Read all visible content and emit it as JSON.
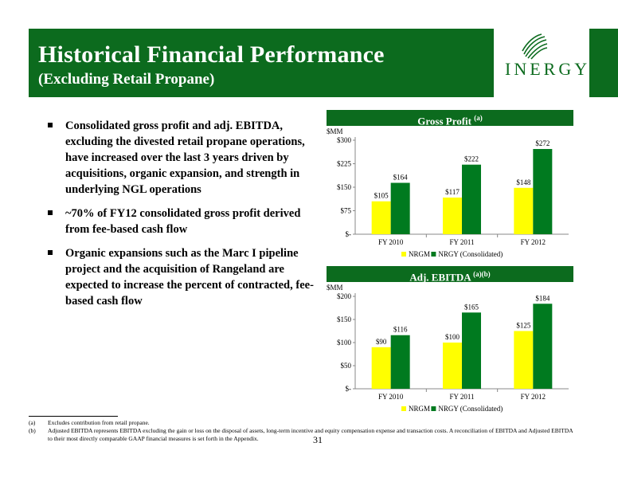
{
  "header": {
    "title": "Historical Financial Performance",
    "subtitle": "(Excluding Retail Propane)",
    "logo_text": "INERGY"
  },
  "bullets": [
    "Consolidated gross profit and adj. EBITDA, excluding the divested retail propane operations, have increased over the last 3 years driven by acquisitions, organic expansion, and strength in underlying NGL operations",
    "~70% of FY12 consolidated gross profit derived from fee-based cash flow",
    "Organic expansions such as the Marc I pipeline project and the acquisition of Rangeland are expected to increase the percent of contracted, fee-based cash flow"
  ],
  "colors": {
    "brand_green": "#0c6b1e",
    "nrgm_yellow": "#ffff00",
    "nrgy_green": "#007a1f"
  },
  "chart_data": [
    {
      "type": "bar",
      "title": "Gross Profit",
      "title_note": "(a)",
      "ylabel": "$MM",
      "categories": [
        "FY 2010",
        "FY 2011",
        "FY 2012"
      ],
      "series": [
        {
          "name": "NRGM",
          "values": [
            105,
            117,
            148
          ],
          "labels": [
            "$105",
            "$117",
            "$148"
          ]
        },
        {
          "name": "NRGY (Consolidated)",
          "values": [
            164,
            222,
            272
          ],
          "labels": [
            "$164",
            "$222",
            "$272"
          ]
        }
      ],
      "ylim": [
        0,
        300
      ],
      "yticks": [
        0,
        75,
        150,
        225,
        300
      ],
      "ytick_labels": [
        "$-",
        "$75",
        "$150",
        "$225",
        "$300"
      ],
      "legend": "bottom",
      "grid": false
    },
    {
      "type": "bar",
      "title": "Adj. EBITDA",
      "title_note": "(a)(b)",
      "ylabel": "$MM",
      "categories": [
        "FY 2010",
        "FY 2011",
        "FY 2012"
      ],
      "series": [
        {
          "name": "NRGM",
          "values": [
            90,
            100,
            125
          ],
          "labels": [
            "$90",
            "$100",
            "$125"
          ]
        },
        {
          "name": "NRGY (Consolidated)",
          "values": [
            116,
            165,
            184
          ],
          "labels": [
            "$116",
            "$165",
            "$184"
          ]
        }
      ],
      "ylim": [
        0,
        200
      ],
      "yticks": [
        0,
        50,
        100,
        150,
        200
      ],
      "ytick_labels": [
        "$-",
        "$50",
        "$100",
        "$150",
        "$200"
      ],
      "legend": "bottom",
      "grid": false
    }
  ],
  "footnotes": [
    {
      "key": "(a)",
      "text": "Excludes contribution from retail propane."
    },
    {
      "key": "(b)",
      "text": "Adjusted EBITDA represents EBITDA excluding the gain or loss on the disposal of assets, long-term incentive and equity compensation expense and transaction costs. A reconciliation of EBITDA and Adjusted EBITDA to their most directly comparable GAAP financial measures is set forth in the Appendix."
    }
  ],
  "page_number": "31"
}
